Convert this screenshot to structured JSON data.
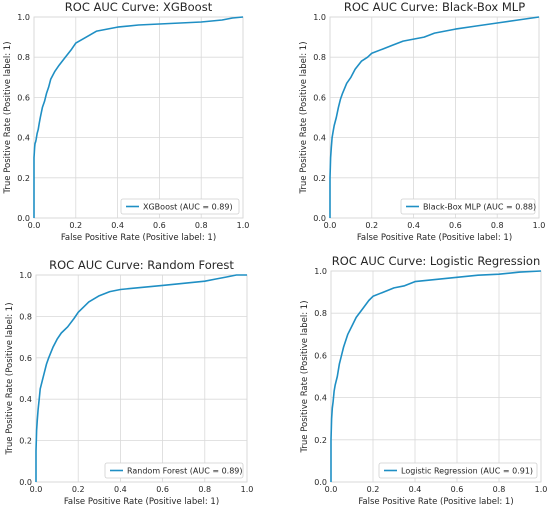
{
  "chart_data": [
    {
      "type": "line",
      "title": "ROC AUC Curve: XGBoost",
      "xlabel": "False Positive Rate (Positive label: 1)",
      "ylabel": "True Positive Rate (Positive label: 1)",
      "xlim": [
        0,
        1
      ],
      "ylim": [
        0,
        1
      ],
      "xticks": [
        "0.0",
        "0.2",
        "0.4",
        "0.6",
        "0.8",
        "1.0"
      ],
      "yticks": [
        "0.0",
        "0.2",
        "0.4",
        "0.6",
        "0.8",
        "1.0"
      ],
      "grid": true,
      "legend_position": "bottom-right",
      "series": [
        {
          "name": "XGBoost (AUC = 0.89)",
          "color": "#1f8fc4",
          "x": [
            0,
            0,
            0.003,
            0.005,
            0.008,
            0.01,
            0.015,
            0.02,
            0.025,
            0.03,
            0.04,
            0.05,
            0.06,
            0.07,
            0.08,
            0.1,
            0.12,
            0.15,
            0.18,
            0.2,
            0.25,
            0.3,
            0.35,
            0.4,
            0.5,
            0.6,
            0.7,
            0.8,
            0.9,
            0.95,
            1.0
          ],
          "y": [
            0,
            0.3,
            0.35,
            0.37,
            0.38,
            0.39,
            0.42,
            0.44,
            0.47,
            0.5,
            0.55,
            0.58,
            0.62,
            0.65,
            0.69,
            0.73,
            0.76,
            0.8,
            0.84,
            0.87,
            0.9,
            0.93,
            0.94,
            0.95,
            0.96,
            0.965,
            0.97,
            0.975,
            0.985,
            0.995,
            1.0
          ]
        }
      ]
    },
    {
      "type": "line",
      "title": "ROC AUC Curve: Black-Box MLP",
      "xlabel": "False Positive Rate (Positive label: 1)",
      "ylabel": "True Positive Rate (Positive label: 1)",
      "xlim": [
        0,
        1
      ],
      "ylim": [
        0,
        1
      ],
      "xticks": [
        "0.0",
        "0.2",
        "0.4",
        "0.6",
        "0.8",
        "1.0"
      ],
      "yticks": [
        "0.0",
        "0.2",
        "0.4",
        "0.6",
        "0.8",
        "1.0"
      ],
      "grid": true,
      "legend_position": "bottom-right",
      "series": [
        {
          "name": "Black-Box MLP (AUC = 0.88)",
          "color": "#1f8fc4",
          "x": [
            0,
            0,
            0.003,
            0.006,
            0.01,
            0.015,
            0.02,
            0.03,
            0.04,
            0.05,
            0.06,
            0.08,
            0.1,
            0.12,
            0.15,
            0.18,
            0.2,
            0.25,
            0.3,
            0.35,
            0.4,
            0.45,
            0.5,
            0.6,
            0.7,
            0.8,
            0.9,
            1.0
          ],
          "y": [
            0,
            0.2,
            0.3,
            0.35,
            0.4,
            0.43,
            0.46,
            0.5,
            0.55,
            0.59,
            0.62,
            0.67,
            0.7,
            0.74,
            0.78,
            0.8,
            0.82,
            0.84,
            0.86,
            0.88,
            0.89,
            0.9,
            0.92,
            0.94,
            0.955,
            0.97,
            0.985,
            1.0
          ]
        }
      ]
    },
    {
      "type": "line",
      "title": "ROC AUC Curve: Random Forest",
      "xlabel": "False Positive Rate (Positive label: 1)",
      "ylabel": "True Positive Rate (Positive label: 1)",
      "xlim": [
        0,
        1
      ],
      "ylim": [
        0,
        1
      ],
      "xticks": [
        "0.0",
        "0.2",
        "0.4",
        "0.6",
        "0.8",
        "1.0"
      ],
      "yticks": [
        "0.0",
        "0.2",
        "0.4",
        "0.6",
        "0.8",
        "1.0"
      ],
      "grid": true,
      "legend_position": "bottom-right",
      "series": [
        {
          "name": "Random Forest (AUC = 0.89)",
          "color": "#1f8fc4",
          "x": [
            0,
            0,
            0.003,
            0.006,
            0.01,
            0.015,
            0.02,
            0.03,
            0.04,
            0.05,
            0.06,
            0.08,
            0.1,
            0.12,
            0.15,
            0.18,
            0.2,
            0.25,
            0.3,
            0.35,
            0.4,
            0.5,
            0.6,
            0.7,
            0.8,
            0.85,
            0.9,
            0.95,
            1.0
          ],
          "y": [
            0,
            0.15,
            0.25,
            0.3,
            0.35,
            0.4,
            0.45,
            0.49,
            0.53,
            0.57,
            0.6,
            0.65,
            0.69,
            0.72,
            0.75,
            0.79,
            0.82,
            0.87,
            0.9,
            0.92,
            0.93,
            0.94,
            0.95,
            0.96,
            0.97,
            0.98,
            0.99,
            1.0,
            1.0
          ]
        }
      ]
    },
    {
      "type": "line",
      "title": "ROC AUC Curve: Logistic Regression",
      "xlabel": "False Positive Rate (Positive label: 1)",
      "ylabel": "True Positive Rate (Positive label: 1)",
      "xlim": [
        0,
        1
      ],
      "ylim": [
        0,
        1
      ],
      "xticks": [
        "0.0",
        "0.2",
        "0.4",
        "0.6",
        "0.8",
        "1.0"
      ],
      "yticks": [
        "0.0",
        "0.2",
        "0.4",
        "0.6",
        "0.8",
        "1.0"
      ],
      "grid": true,
      "legend_position": "bottom-right",
      "series": [
        {
          "name": "Logistic Regression (AUC = 0.91)",
          "color": "#1f8fc4",
          "x": [
            0,
            0,
            0.003,
            0.006,
            0.01,
            0.015,
            0.02,
            0.03,
            0.04,
            0.05,
            0.06,
            0.08,
            0.1,
            0.12,
            0.15,
            0.18,
            0.2,
            0.25,
            0.3,
            0.35,
            0.4,
            0.5,
            0.6,
            0.7,
            0.8,
            0.9,
            1.0
          ],
          "y": [
            0,
            0.2,
            0.3,
            0.35,
            0.38,
            0.43,
            0.46,
            0.5,
            0.56,
            0.6,
            0.64,
            0.7,
            0.74,
            0.78,
            0.82,
            0.86,
            0.88,
            0.9,
            0.92,
            0.93,
            0.95,
            0.96,
            0.97,
            0.98,
            0.985,
            0.995,
            1.0
          ]
        }
      ]
    }
  ]
}
